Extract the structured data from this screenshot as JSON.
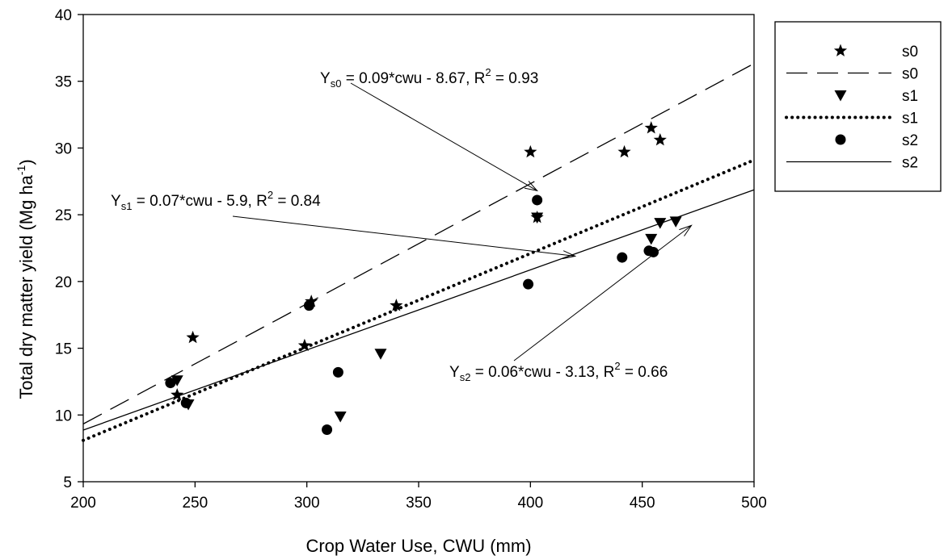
{
  "chart_data": {
    "type": "scatter",
    "xlabel": "Crop Water Use, CWU (mm)",
    "ylabel_main": "Total dry matter yield (Mg ha",
    "ylabel_sup": "-1",
    "ylabel_close": ")",
    "xlim": [
      200,
      500
    ],
    "ylim": [
      5,
      40
    ],
    "xticks": [
      "200",
      "250",
      "300",
      "350",
      "400",
      "450",
      "500"
    ],
    "yticks": [
      "5",
      "10",
      "15",
      "20",
      "25",
      "30",
      "35",
      "40"
    ],
    "legend_position": "right",
    "series": [
      {
        "name": "s0",
        "marker": "star",
        "points": [
          [
            242,
            11.5
          ],
          [
            249,
            15.8
          ],
          [
            299,
            15.2
          ],
          [
            302,
            18.5
          ],
          [
            340,
            18.2
          ],
          [
            400,
            29.7
          ],
          [
            403,
            24.8
          ],
          [
            442,
            29.7
          ],
          [
            454,
            31.5
          ],
          [
            458,
            30.6
          ]
        ]
      },
      {
        "name": "s1",
        "marker": "triangle-down",
        "points": [
          [
            242,
            12.6
          ],
          [
            247,
            10.8
          ],
          [
            315,
            9.9
          ],
          [
            333,
            14.6
          ],
          [
            403,
            24.8
          ],
          [
            454,
            23.2
          ],
          [
            458,
            24.4
          ],
          [
            465,
            24.5
          ]
        ]
      },
      {
        "name": "s2",
        "marker": "circle",
        "points": [
          [
            239,
            12.4
          ],
          [
            246,
            10.9
          ],
          [
            301,
            18.2
          ],
          [
            309,
            8.9
          ],
          [
            314,
            13.2
          ],
          [
            399,
            19.8
          ],
          [
            403,
            26.1
          ],
          [
            441,
            21.8
          ],
          [
            453,
            22.3
          ],
          [
            455,
            22.2
          ]
        ]
      }
    ],
    "fits": [
      {
        "name": "s0",
        "style": "dashed",
        "slope": 0.09,
        "intercept": -8.67
      },
      {
        "name": "s1",
        "style": "dotted",
        "slope": 0.07,
        "intercept": -5.9
      },
      {
        "name": "s2",
        "style": "solid",
        "slope": 0.06,
        "intercept": -3.13
      }
    ],
    "legend": [
      {
        "label": "s0",
        "kind": "marker",
        "marker": "star"
      },
      {
        "label": "s0",
        "kind": "line",
        "style": "dashed"
      },
      {
        "label": "s1",
        "kind": "marker",
        "marker": "triangle-down"
      },
      {
        "label": "s1",
        "kind": "line",
        "style": "dotted"
      },
      {
        "label": "s2",
        "kind": "marker",
        "marker": "circle"
      },
      {
        "label": "s2",
        "kind": "line",
        "style": "solid"
      }
    ],
    "annotations": [
      {
        "var": "Y",
        "sub": "s0",
        "rest": " = 0.09*cwu - 8.67, R",
        "sup": "2",
        "tail": " = 0.93",
        "target": [
          403,
          26.8
        ]
      },
      {
        "var": "Y",
        "sub": "s1",
        "rest": " = 0.07*cwu - 5.9, R",
        "sup": "2",
        "tail": " = 0.84",
        "target": [
          420,
          21.9
        ]
      },
      {
        "var": "Y",
        "sub": "s2",
        "rest": " = 0.06*cwu - 3.13, R",
        "sup": "2",
        "tail": " = 0.66",
        "target": [
          472,
          24.2
        ]
      }
    ]
  }
}
